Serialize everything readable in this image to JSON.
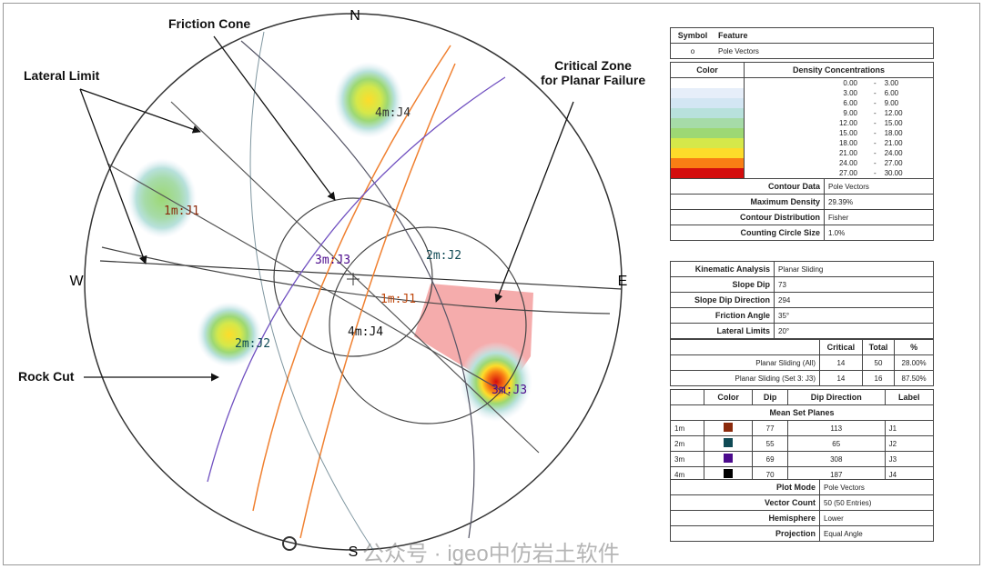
{
  "annotations": {
    "friction_cone": "Friction Cone",
    "lateral_limit": "Lateral Limit",
    "critical_zone": "Critical Zone\nfor Planar Failure",
    "rock_cut": "Rock Cut"
  },
  "compass": {
    "n": "N",
    "s": "S",
    "w": "W",
    "e": "E"
  },
  "set_labels": {
    "j1": "1m:J1",
    "j2": "2m:J2",
    "j3": "3m:J3",
    "j4": "4m:J4",
    "c1": "1m:J1",
    "c2": "2m:J2",
    "c3": "3m:J3",
    "c4": "4m:J4"
  },
  "legend": {
    "symbol_header": "Symbol",
    "feature_header": "Feature",
    "symbol": "o",
    "feature": "Pole Vectors"
  },
  "density": {
    "color_header": "Color",
    "conc_header": "Density Concentrations",
    "rows": [
      {
        "lo": "0.00",
        "hi": "3.00",
        "color": "#ffffff"
      },
      {
        "lo": "3.00",
        "hi": "6.00",
        "color": "#e6eef9"
      },
      {
        "lo": "6.00",
        "hi": "9.00",
        "color": "#d3e6f3"
      },
      {
        "lo": "9.00",
        "hi": "12.00",
        "color": "#b8e1dc"
      },
      {
        "lo": "12.00",
        "hi": "15.00",
        "color": "#a6dba8"
      },
      {
        "lo": "15.00",
        "hi": "18.00",
        "color": "#9dd874"
      },
      {
        "lo": "18.00",
        "hi": "21.00",
        "color": "#d5e84a"
      },
      {
        "lo": "21.00",
        "hi": "24.00",
        "color": "#fddc2a"
      },
      {
        "lo": "24.00",
        "hi": "27.00",
        "color": "#f97e14"
      },
      {
        "lo": "27.00",
        "hi": "30.00",
        "color": "#d40d0d"
      }
    ]
  },
  "contour": {
    "contour_data_label": "Contour Data",
    "contour_data": "Pole Vectors",
    "max_density_label": "Maximum Density",
    "max_density": "29.39%",
    "distribution_label": "Contour Distribution",
    "distribution": "Fisher",
    "circle_size_label": "Counting Circle Size",
    "circle_size": "1.0%"
  },
  "kinematic": {
    "analysis_label": "Kinematic Analysis",
    "analysis": "Planar Sliding",
    "slope_dip_label": "Slope Dip",
    "slope_dip": "73",
    "slope_dir_label": "Slope Dip Direction",
    "slope_dir": "294",
    "friction_label": "Friction Angle",
    "friction": "35°",
    "lateral_label": "Lateral Limits",
    "lateral": "20°",
    "critical_header": "Critical",
    "total_header": "Total",
    "pct_header": "%",
    "rows": [
      {
        "name": "Planar Sliding (All)",
        "critical": "14",
        "total": "50",
        "pct": "28.00%"
      },
      {
        "name": "Planar Sliding (Set 3: J3)",
        "critical": "14",
        "total": "16",
        "pct": "87.50%"
      }
    ]
  },
  "sets": {
    "color_header": "Color",
    "dip_header": "Dip",
    "dipdir_header": "Dip Direction",
    "label_header": "Label",
    "title": "Mean Set Planes",
    "rows": [
      {
        "id": "1m",
        "color": "#8b2a0c",
        "dip": "77",
        "dipdir": "113",
        "label": "J1"
      },
      {
        "id": "2m",
        "color": "#0f4a55",
        "dip": "55",
        "dipdir": "65",
        "label": "J2"
      },
      {
        "id": "3m",
        "color": "#4b0a8c",
        "dip": "69",
        "dipdir": "308",
        "label": "J3"
      },
      {
        "id": "4m",
        "color": "#000000",
        "dip": "70",
        "dipdir": "187",
        "label": "J4"
      }
    ]
  },
  "plot": {
    "mode_label": "Plot Mode",
    "mode": "Pole Vectors",
    "count_label": "Vector Count",
    "count": "50 (50 Entries)",
    "hemi_label": "Hemisphere",
    "hemi": "Lower",
    "proj_label": "Projection",
    "proj": "Equal Angle"
  },
  "watermark": "公众号 · igeo中仿岩土软件"
}
